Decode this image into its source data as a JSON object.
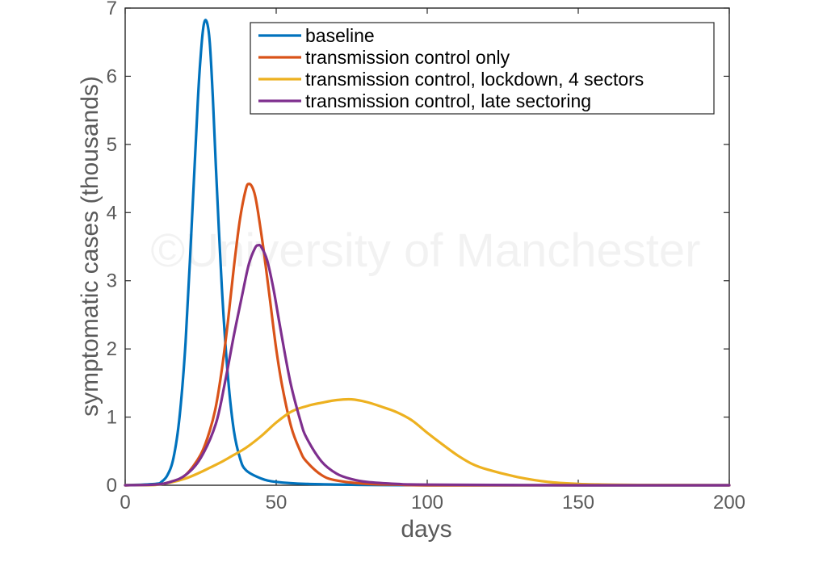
{
  "chart_data": {
    "type": "line",
    "xlabel": "days",
    "ylabel": "symptomatic cases (thousands)",
    "xlim": [
      0,
      200
    ],
    "ylim": [
      0,
      7
    ],
    "xticks": [
      0,
      50,
      100,
      150,
      200
    ],
    "yticks": [
      0,
      1,
      2,
      3,
      4,
      5,
      6,
      7
    ],
    "grid": false,
    "legend_position": "top-right",
    "watermark": "©University of Manchester",
    "series": [
      {
        "name": "baseline",
        "color": "#0072BD",
        "x": [
          0,
          10,
          12,
          14,
          16,
          18,
          20,
          22,
          24,
          25,
          26,
          27,
          28,
          29,
          30,
          32,
          34,
          36,
          38,
          40,
          45,
          50,
          60,
          80,
          100,
          150,
          200
        ],
        "y": [
          0,
          0.02,
          0.05,
          0.15,
          0.4,
          1.0,
          2.1,
          3.8,
          5.6,
          6.3,
          6.75,
          6.8,
          6.5,
          5.7,
          4.7,
          2.9,
          1.6,
          0.8,
          0.4,
          0.22,
          0.1,
          0.05,
          0.02,
          0.005,
          0,
          0,
          0
        ]
      },
      {
        "name": "transmission control only",
        "color": "#D95319",
        "x": [
          0,
          10,
          15,
          20,
          25,
          28,
          30,
          32,
          34,
          36,
          38,
          40,
          41,
          42,
          43,
          44,
          46,
          48,
          50,
          52,
          55,
          58,
          60,
          65,
          70,
          80,
          90,
          100,
          150,
          200
        ],
        "y": [
          0,
          0.01,
          0.05,
          0.15,
          0.45,
          0.8,
          1.15,
          1.7,
          2.4,
          3.2,
          3.9,
          4.35,
          4.42,
          4.38,
          4.25,
          4.0,
          3.4,
          2.7,
          2.0,
          1.45,
          0.85,
          0.5,
          0.35,
          0.15,
          0.07,
          0.02,
          0.01,
          0,
          0,
          0
        ]
      },
      {
        "name": "transmission control, lockdown, 4 sectors",
        "color": "#EDB120",
        "x": [
          0,
          10,
          20,
          30,
          35,
          40,
          45,
          50,
          55,
          60,
          65,
          70,
          75,
          80,
          85,
          90,
          95,
          100,
          105,
          110,
          115,
          120,
          130,
          140,
          150,
          160,
          170,
          200
        ],
        "y": [
          0,
          0.005,
          0.1,
          0.3,
          0.42,
          0.55,
          0.72,
          0.92,
          1.08,
          1.16,
          1.21,
          1.25,
          1.26,
          1.22,
          1.15,
          1.07,
          0.95,
          0.77,
          0.6,
          0.44,
          0.31,
          0.23,
          0.12,
          0.05,
          0.02,
          0.01,
          0.005,
          0
        ]
      },
      {
        "name": "transmission control, late sectoring",
        "color": "#7E2F8E",
        "x": [
          0,
          10,
          15,
          20,
          25,
          30,
          33,
          36,
          39,
          41,
          43,
          44,
          45,
          47,
          49,
          51,
          53,
          55,
          58,
          60,
          65,
          70,
          75,
          80,
          90,
          100,
          150,
          200
        ],
        "y": [
          0,
          0.01,
          0.05,
          0.15,
          0.4,
          0.9,
          1.5,
          2.2,
          2.85,
          3.25,
          3.48,
          3.52,
          3.5,
          3.3,
          2.9,
          2.4,
          1.9,
          1.45,
          0.95,
          0.7,
          0.35,
          0.17,
          0.09,
          0.05,
          0.02,
          0.01,
          0,
          0
        ]
      }
    ]
  }
}
